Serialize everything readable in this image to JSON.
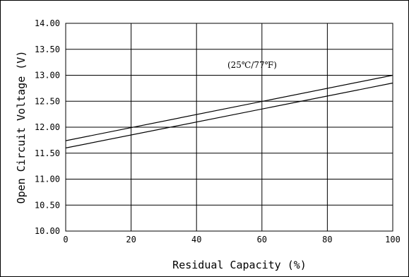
{
  "chart_data": {
    "type": "line",
    "xlabel": "Residual Capacity (%)",
    "ylabel": "Open Circuit Voltage (V)",
    "xlim": [
      0,
      100
    ],
    "ylim": [
      10.0,
      14.0
    ],
    "x_ticks": [
      0,
      20,
      40,
      60,
      80,
      100
    ],
    "x_tick_labels": [
      "0",
      "20",
      "40",
      "60",
      "80",
      "100"
    ],
    "y_ticks": [
      10.0,
      10.5,
      11.0,
      11.5,
      12.0,
      12.5,
      13.0,
      13.5,
      14.0
    ],
    "y_tick_labels": [
      "10.00",
      "10.50",
      "11.00",
      "11.50",
      "12.00",
      "12.50",
      "13.00",
      "13.50",
      "14.00"
    ],
    "grid": true,
    "annotation": {
      "text": "(25℃/77℉)",
      "x": 57,
      "y": 13.2
    },
    "series": [
      {
        "x": [
          0,
          100
        ],
        "values": [
          11.74,
          13.0
        ]
      },
      {
        "x": [
          0,
          100
        ],
        "values": [
          11.6,
          12.85
        ]
      }
    ],
    "colors": {
      "line": "#000000",
      "grid": "#000000"
    }
  }
}
